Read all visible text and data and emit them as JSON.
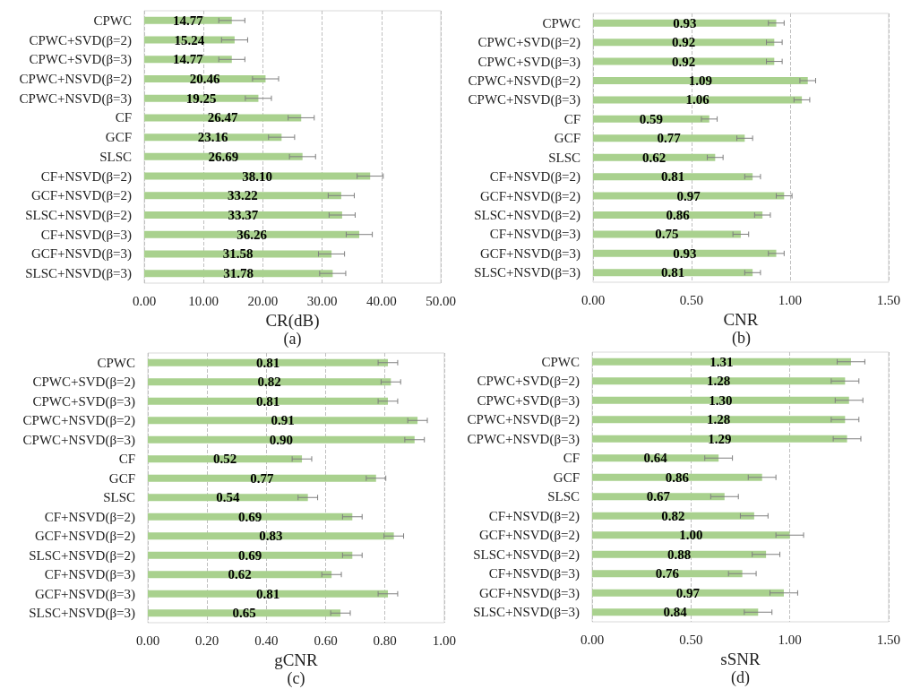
{
  "chart_data": [
    {
      "type": "bar",
      "orientation": "horizontal",
      "categories": [
        "CPWC",
        "CPWC+SVD(β=2)",
        "CPWC+SVD(β=3)",
        "CPWC+NSVD(β=2)",
        "CPWC+NSVD(β=3)",
        "CF",
        "GCF",
        "SLSC",
        "CF+NSVD(β=2)",
        "GCF+NSVD(β=2)",
        "SLSC+NSVD(β=2)",
        "CF+NSVD(β=3)",
        "GCF+NSVD(β=3)",
        "SLSC+NSVD(β=3)"
      ],
      "values": [
        14.77,
        15.24,
        14.77,
        20.46,
        19.25,
        26.47,
        23.16,
        26.69,
        38.1,
        33.22,
        33.37,
        36.26,
        31.58,
        31.78
      ],
      "value_labels": [
        "14.77",
        "15.24",
        "14.77",
        "20.46",
        "19.25",
        "26.47",
        "23.16",
        "26.69",
        "38.10",
        "33.22",
        "33.37",
        "36.26",
        "31.58",
        "31.78"
      ],
      "errors": [
        2.2,
        2.2,
        2.2,
        2.2,
        2.2,
        2.2,
        2.2,
        2.2,
        2.2,
        2.2,
        2.2,
        2.2,
        2.2,
        2.2
      ],
      "color": "#a9d18e",
      "xlabel": "CR(dB)",
      "xlim": [
        0,
        50
      ],
      "xticks": [
        {
          "value": 0,
          "label": "0.00"
        },
        {
          "value": 10,
          "label": "10.00"
        },
        {
          "value": 20,
          "label": "20.00"
        },
        {
          "value": 30,
          "label": "30.00"
        },
        {
          "value": 40,
          "label": "40.00"
        },
        {
          "value": 50,
          "label": "50.00"
        }
      ],
      "grid": "x",
      "annotations": [
        "(a)"
      ]
    },
    {
      "type": "bar",
      "orientation": "horizontal",
      "categories": [
        "CPWC",
        "CPWC+SVD(β=2)",
        "CPWC+SVD(β=3)",
        "CPWC+NSVD(β=2)",
        "CPWC+NSVD(β=3)",
        "CF",
        "GCF",
        "SLSC",
        "CF+NSVD(β=2)",
        "GCF+NSVD(β=2)",
        "SLSC+NSVD(β=2)",
        "CF+NSVD(β=3)",
        "GCF+NSVD(β=3)",
        "SLSC+NSVD(β=3)"
      ],
      "values": [
        0.93,
        0.92,
        0.92,
        1.09,
        1.06,
        0.59,
        0.77,
        0.62,
        0.81,
        0.97,
        0.86,
        0.75,
        0.93,
        0.81
      ],
      "value_labels": [
        "0.93",
        "0.92",
        "0.92",
        "1.09",
        "1.06",
        "0.59",
        "0.77",
        "0.62",
        "0.81",
        "0.97",
        "0.86",
        "0.75",
        "0.93",
        "0.81"
      ],
      "errors": [
        0.04,
        0.04,
        0.04,
        0.04,
        0.04,
        0.04,
        0.04,
        0.04,
        0.04,
        0.04,
        0.04,
        0.04,
        0.04,
        0.04
      ],
      "color": "#a9d18e",
      "xlabel": "CNR",
      "xlim": [
        0,
        1.5
      ],
      "xticks": [
        {
          "value": 0,
          "label": "0.00"
        },
        {
          "value": 0.5,
          "label": "0.50"
        },
        {
          "value": 1,
          "label": "1.00"
        },
        {
          "value": 1.5,
          "label": "1.50"
        }
      ],
      "grid": "x",
      "annotations": [
        "(b)"
      ]
    },
    {
      "type": "bar",
      "orientation": "horizontal",
      "categories": [
        "CPWC",
        "CPWC+SVD(β=2)",
        "CPWC+SVD(β=3)",
        "CPWC+NSVD(β=2)",
        "CPWC+NSVD(β=3)",
        "CF",
        "GCF",
        "SLSC",
        "CF+NSVD(β=2)",
        "GCF+NSVD(β=2)",
        "SLSC+NSVD(β=2)",
        "CF+NSVD(β=3)",
        "GCF+NSVD(β=3)",
        "SLSC+NSVD(β=3)"
      ],
      "values": [
        0.81,
        0.82,
        0.81,
        0.91,
        0.9,
        0.52,
        0.77,
        0.54,
        0.69,
        0.83,
        0.69,
        0.62,
        0.81,
        0.65
      ],
      "value_labels": [
        "0.81",
        "0.82",
        "0.81",
        "0.91",
        "0.90",
        "0.52",
        "0.77",
        "0.54",
        "0.69",
        "0.83",
        "0.69",
        "0.62",
        "0.81",
        "0.65"
      ],
      "errors": [
        0.033,
        0.033,
        0.033,
        0.033,
        0.033,
        0.033,
        0.033,
        0.033,
        0.033,
        0.033,
        0.033,
        0.033,
        0.033,
        0.033
      ],
      "color": "#a9d18e",
      "xlabel": "gCNR",
      "xlim": [
        0,
        1
      ],
      "xticks": [
        {
          "value": 0,
          "label": "0.00"
        },
        {
          "value": 0.2,
          "label": "0.20"
        },
        {
          "value": 0.4,
          "label": "0.40"
        },
        {
          "value": 0.6,
          "label": "0.60"
        },
        {
          "value": 0.8,
          "label": "0.80"
        },
        {
          "value": 1,
          "label": "1.00"
        }
      ],
      "grid": "x",
      "annotations": [
        "(c)"
      ]
    },
    {
      "type": "bar",
      "orientation": "horizontal",
      "categories": [
        "CPWC",
        "CPWC+SVD(β=2)",
        "CPWC+SVD(β=3)",
        "CPWC+NSVD(β=2)",
        "CPWC+NSVD(β=3)",
        "CF",
        "GCF",
        "SLSC",
        "CF+NSVD(β=2)",
        "GCF+NSVD(β=2)",
        "SLSC+NSVD(β=2)",
        "CF+NSVD(β=3)",
        "GCF+NSVD(β=3)",
        "SLSC+NSVD(β=3)"
      ],
      "values": [
        1.31,
        1.28,
        1.3,
        1.28,
        1.29,
        0.64,
        0.86,
        0.67,
        0.82,
        1.0,
        0.88,
        0.76,
        0.97,
        0.84
      ],
      "value_labels": [
        "1.31",
        "1.28",
        "1.30",
        "1.28",
        "1.29",
        "0.64",
        "0.86",
        "0.67",
        "0.82",
        "1.00",
        "0.88",
        "0.76",
        "0.97",
        "0.84"
      ],
      "errors": [
        0.07,
        0.07,
        0.07,
        0.07,
        0.07,
        0.07,
        0.07,
        0.07,
        0.07,
        0.07,
        0.07,
        0.07,
        0.07,
        0.07
      ],
      "color": "#a9d18e",
      "xlabel": "sSNR",
      "xlim": [
        0,
        1.5
      ],
      "xticks": [
        {
          "value": 0,
          "label": "0.00"
        },
        {
          "value": 0.5,
          "label": "0.50"
        },
        {
          "value": 1,
          "label": "1.00"
        },
        {
          "value": 1.5,
          "label": "1.50"
        }
      ],
      "grid": "x",
      "annotations": [
        "(d)"
      ]
    }
  ]
}
